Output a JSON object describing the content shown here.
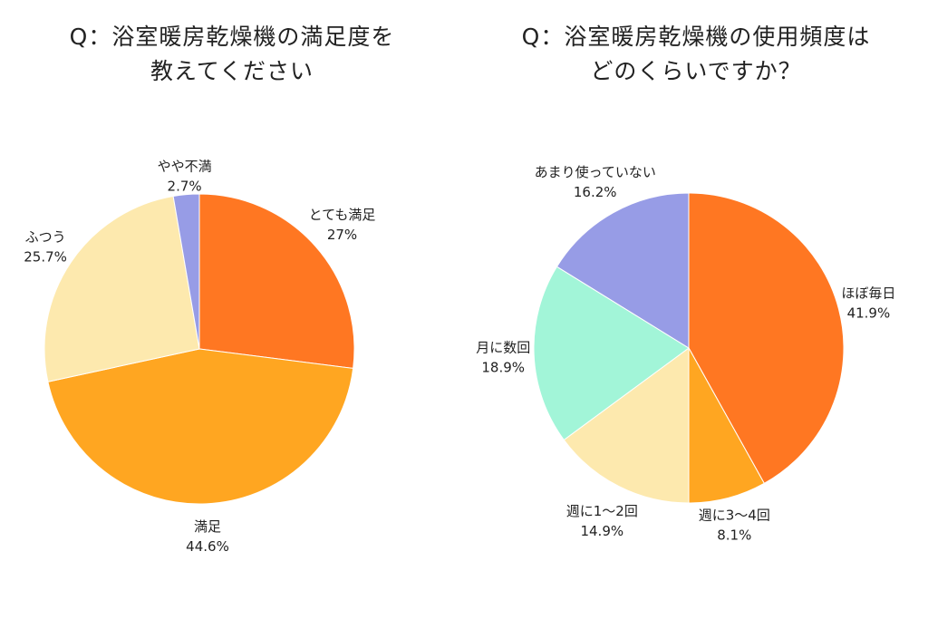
{
  "chart_data": [
    {
      "type": "pie",
      "title_lines": [
        "Q：浴室暖房乾燥機の満足度を",
        "教えてください"
      ],
      "slices": [
        {
          "label": "とても満足",
          "value": 27.0,
          "value_label": "27%",
          "color": "#FF7722"
        },
        {
          "label": "満足",
          "value": 44.6,
          "value_label": "44.6%",
          "color": "#FFA621"
        },
        {
          "label": "ふつう",
          "value": 25.7,
          "value_label": "25.7%",
          "color": "#FDE9AE"
        },
        {
          "label": "やや不満",
          "value": 2.7,
          "value_label": "2.7%",
          "color": "#979CE6"
        }
      ],
      "start_angle": "12 o'clock",
      "direction": "clockwise"
    },
    {
      "type": "pie",
      "title_lines": [
        "Q：浴室暖房乾燥機の使用頻度は",
        "どのくらいですか？"
      ],
      "slices": [
        {
          "label": "ほぼ毎日",
          "value": 41.9,
          "value_label": "41.9%",
          "color": "#FF7722"
        },
        {
          "label": "週に3〜4回",
          "value": 8.1,
          "value_label": "8.1%",
          "color": "#FFA621"
        },
        {
          "label": "週に1〜2回",
          "value": 14.9,
          "value_label": "14.9%",
          "color": "#FDE9AE"
        },
        {
          "label": "月に数回",
          "value": 18.9,
          "value_label": "18.9%",
          "color": "#A2F5D8"
        },
        {
          "label": "あまり使っていない",
          "value": 16.2,
          "value_label": "16.2%",
          "color": "#979CE6"
        }
      ],
      "start_angle": "12 o'clock",
      "direction": "clockwise"
    }
  ]
}
